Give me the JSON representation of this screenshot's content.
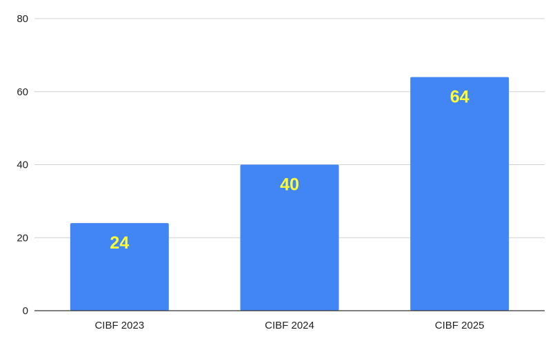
{
  "chart_data": {
    "type": "bar",
    "categories": [
      "CIBF 2023",
      "CIBF 2024",
      "CIBF 2025"
    ],
    "values": [
      24,
      40,
      64
    ],
    "data_labels": [
      "24",
      "40",
      "64"
    ],
    "y_ticks": [
      "0",
      "20",
      "40",
      "60",
      "80"
    ],
    "ylim": [
      0,
      80
    ],
    "grid": true,
    "legend": "none",
    "colors": {
      "bar": "#4285F4",
      "data_label": "#FFFF33"
    }
  }
}
